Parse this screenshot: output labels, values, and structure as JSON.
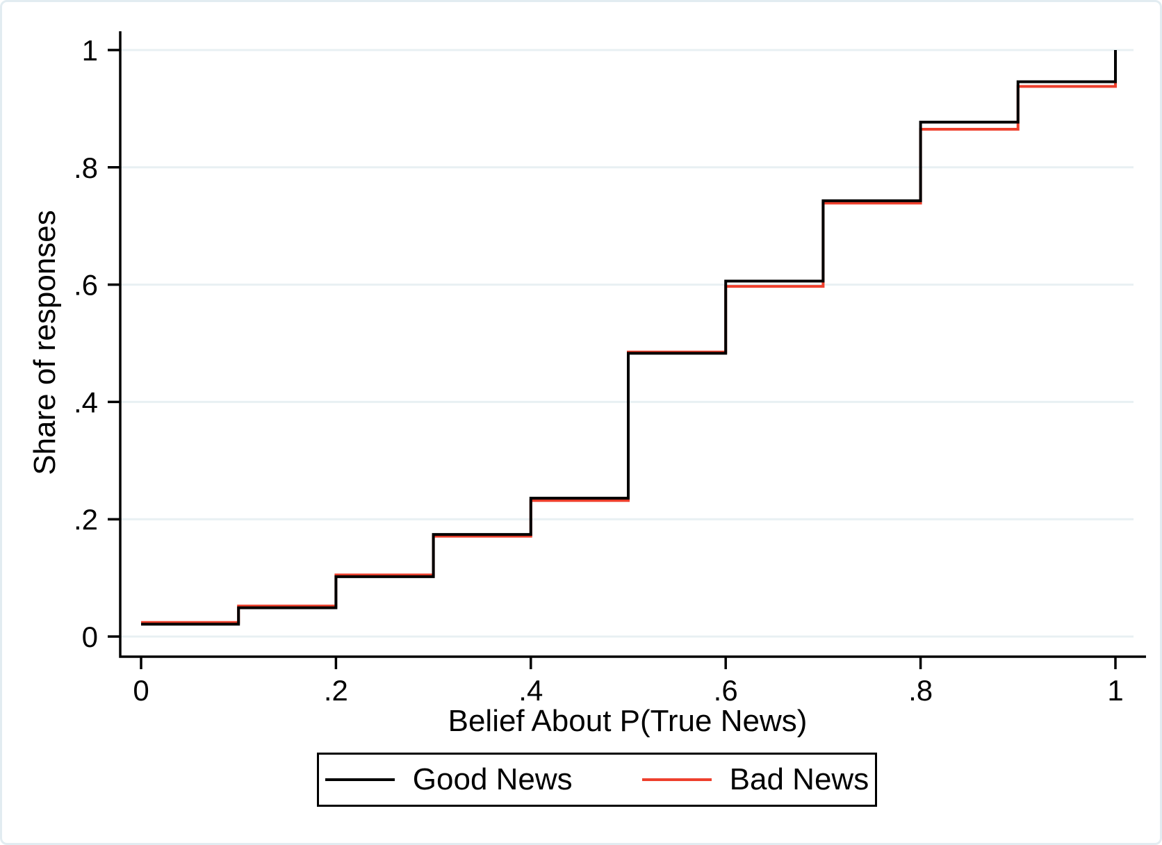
{
  "figure": {
    "background_color": "#ffffff",
    "frame_border_color": "#e2ecf1"
  },
  "chart_data": {
    "type": "line",
    "subtype": "step-cdf",
    "title": "",
    "xlabel": "Belief About P(True News)",
    "ylabel": "Share of responses",
    "xlim": [
      0,
      1
    ],
    "ylim": [
      0,
      1
    ],
    "grid": "horizontal-only",
    "gridline_color": "#e8f0f3",
    "axis_color": "#000000",
    "legend_position": "bottom-center-boxed",
    "x_ticks": {
      "values": [
        0,
        0.2,
        0.4,
        0.6,
        0.8,
        1
      ],
      "labels": [
        "0",
        ".2",
        ".4",
        ".6",
        ".8",
        "1"
      ]
    },
    "y_ticks": {
      "values": [
        0,
        0.2,
        0.4,
        0.6,
        0.8,
        1
      ],
      "labels": [
        "0",
        ".2",
        ".4",
        ".6",
        ".8",
        "1"
      ]
    },
    "x": [
      0,
      0.1,
      0.2,
      0.3,
      0.4,
      0.5,
      0.6,
      0.7,
      0.8,
      0.9,
      1
    ],
    "series": [
      {
        "name": "Good News",
        "color": "#000000",
        "values": [
          0.021,
          0.049,
          0.102,
          0.174,
          0.236,
          0.483,
          0.606,
          0.743,
          0.877,
          0.946,
          1
        ]
      },
      {
        "name": "Bad News",
        "color": "#ee402d",
        "values": [
          0.024,
          0.052,
          0.105,
          0.171,
          0.232,
          0.485,
          0.597,
          0.739,
          0.865,
          0.938,
          1
        ]
      }
    ]
  }
}
